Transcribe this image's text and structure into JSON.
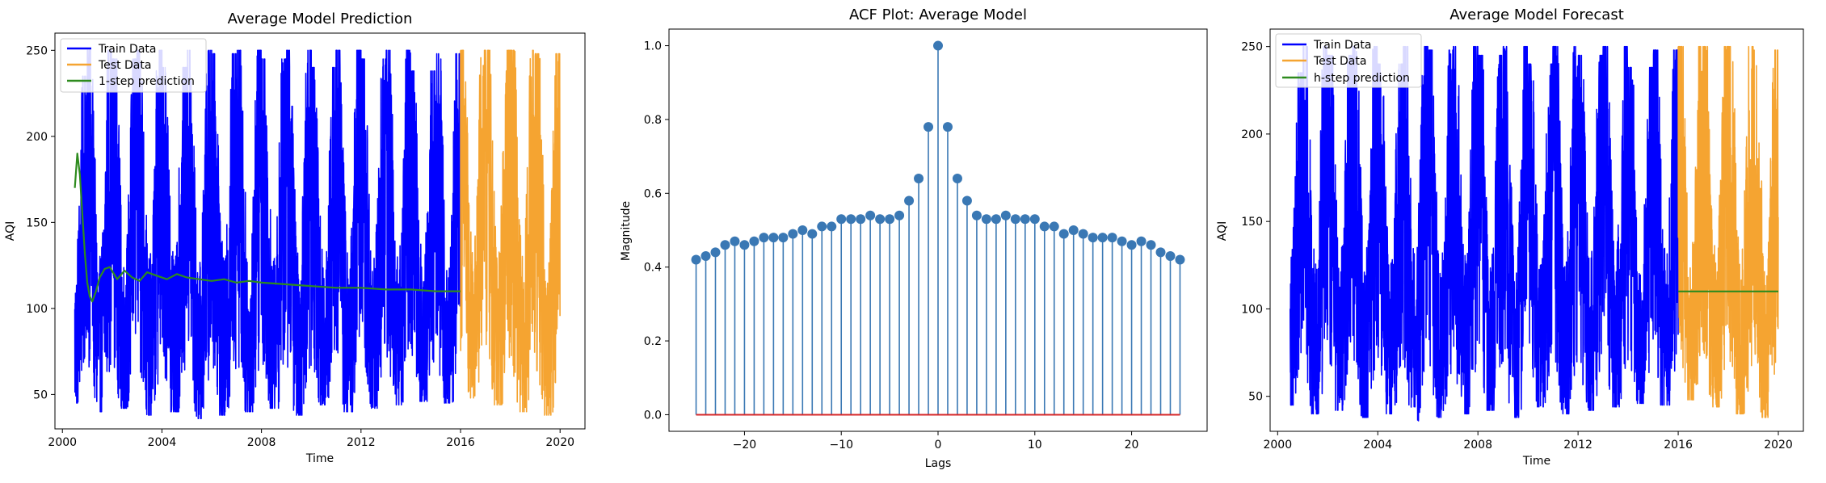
{
  "figure": {
    "background": "#ffffff"
  },
  "chart_data": [
    {
      "type": "line",
      "title": "Average Model Prediction",
      "xlabel": "Time",
      "ylabel": "AQI",
      "xlim": [
        1999.7,
        2021.0
      ],
      "ylim": [
        30,
        260
      ],
      "xticks": [
        2000,
        2004,
        2008,
        2012,
        2016,
        2020
      ],
      "yticks": [
        50,
        100,
        150,
        200,
        250
      ],
      "legend_position": "top-left",
      "series": [
        {
          "name": "Train Data",
          "color": "#0000ff",
          "kind": "seasonal",
          "x_start": 2000.5,
          "x_end": 2016.0,
          "annual_peaks": [
            235,
            250,
            245,
            250,
            240,
            250,
            248,
            250,
            245,
            250,
            240,
            250,
            245,
            250,
            238,
            248
          ],
          "annual_troughs": [
            45,
            40,
            42,
            38,
            40,
            36,
            38,
            40,
            42,
            38,
            44,
            40,
            42,
            44,
            46,
            45
          ]
        },
        {
          "name": "Test Data",
          "color": "#f5a431",
          "kind": "seasonal",
          "x_start": 2016.0,
          "x_end": 2020.0,
          "annual_peaks": [
            250,
            250,
            250,
            248
          ],
          "annual_troughs": [
            48,
            44,
            40,
            38
          ]
        },
        {
          "name": "1-step prediction",
          "color": "#2e8b1e",
          "kind": "line",
          "x": [
            2000.5,
            2000.6,
            2000.7,
            2000.8,
            2000.9,
            2001.0,
            2001.1,
            2001.2,
            2001.35,
            2001.5,
            2001.7,
            2001.9,
            2002.2,
            2002.5,
            2002.8,
            2003.1,
            2003.4,
            2003.8,
            2004.2,
            2004.6,
            2005.0,
            2005.5,
            2006.0,
            2006.5,
            2007.0,
            2007.5,
            2008.0,
            2009.0,
            2010.0,
            2011.0,
            2012.0,
            2013.0,
            2014.0,
            2015.0,
            2016.0
          ],
          "y": [
            170,
            190,
            178,
            155,
            132,
            115,
            107,
            104,
            110,
            118,
            123,
            124,
            117,
            122,
            118,
            116,
            121,
            119,
            117,
            120,
            118,
            117,
            116,
            117,
            115,
            116,
            115,
            114,
            113,
            112,
            112,
            111,
            111,
            110,
            110
          ]
        }
      ]
    },
    {
      "type": "stem",
      "title": "ACF Plot: Average Model",
      "xlabel": "Lags",
      "ylabel": "Magnitude",
      "xlim": [
        -27.8,
        27.8
      ],
      "ylim": [
        -0.045,
        1.045
      ],
      "xticks": [
        -20,
        -10,
        0,
        10,
        20
      ],
      "xtick_labels": [
        "−20",
        "−10",
        "0",
        "10",
        "20"
      ],
      "yticks": [
        0.0,
        0.2,
        0.4,
        0.6,
        0.8,
        1.0
      ],
      "ytick_labels": [
        "0.0",
        "0.2",
        "0.4",
        "0.6",
        "0.8",
        "1.0"
      ],
      "stem_color": "#3a78b4",
      "baseline_color": "#d62728",
      "lags": [
        0,
        1,
        2,
        3,
        4,
        5,
        6,
        7,
        8,
        9,
        10,
        11,
        12,
        13,
        14,
        15,
        16,
        17,
        18,
        19,
        20,
        21,
        22,
        23,
        24,
        25
      ],
      "values": [
        1.0,
        0.78,
        0.64,
        0.58,
        0.54,
        0.53,
        0.53,
        0.54,
        0.53,
        0.53,
        0.53,
        0.51,
        0.51,
        0.49,
        0.5,
        0.49,
        0.48,
        0.48,
        0.48,
        0.47,
        0.46,
        0.47,
        0.46,
        0.44,
        0.43,
        0.42
      ]
    },
    {
      "type": "line",
      "title": "Average Model Forecast",
      "xlabel": "Time",
      "ylabel": "AQI",
      "xlim": [
        1999.7,
        2021.0
      ],
      "ylim": [
        30,
        260
      ],
      "xticks": [
        2000,
        2004,
        2008,
        2012,
        2016,
        2020
      ],
      "yticks": [
        50,
        100,
        150,
        200,
        250
      ],
      "legend_position": "top-left",
      "series": [
        {
          "name": "Train Data",
          "color": "#0000ff",
          "kind": "seasonal",
          "x_start": 2000.5,
          "x_end": 2016.0,
          "annual_peaks": [
            235,
            250,
            245,
            250,
            240,
            250,
            248,
            250,
            245,
            250,
            240,
            250,
            245,
            250,
            238,
            248
          ],
          "annual_troughs": [
            45,
            40,
            42,
            38,
            40,
            36,
            38,
            40,
            42,
            38,
            44,
            40,
            42,
            44,
            46,
            45
          ]
        },
        {
          "name": "Test Data",
          "color": "#f5a431",
          "kind": "seasonal",
          "x_start": 2016.0,
          "x_end": 2020.0,
          "annual_peaks": [
            250,
            250,
            250,
            248
          ],
          "annual_troughs": [
            48,
            44,
            40,
            38
          ]
        },
        {
          "name": "h-step prediction",
          "color": "#2e8b1e",
          "kind": "line",
          "x": [
            2016.0,
            2020.0
          ],
          "y": [
            110,
            110
          ]
        }
      ]
    }
  ]
}
